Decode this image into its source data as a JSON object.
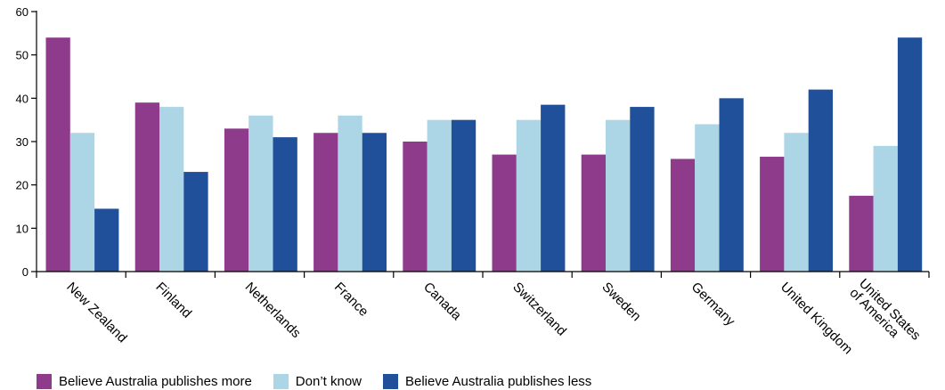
{
  "chart_data": {
    "type": "bar",
    "categories": [
      "New Zealand",
      "Finland",
      "Netherlands",
      "France",
      "Canada",
      "Switzerland",
      "Sweden",
      "Germany",
      "United Kingdom",
      "United States\nof America"
    ],
    "series": [
      {
        "name": "Believe Australia publishes more",
        "color": "#8e3b8c",
        "values": [
          54,
          39,
          33,
          32,
          30,
          27,
          27,
          26,
          26.5,
          17.5
        ]
      },
      {
        "name": "Don’t know",
        "color": "#acd5e6",
        "values": [
          32,
          38,
          36,
          36,
          35,
          35,
          35,
          34,
          32,
          29
        ]
      },
      {
        "name": "Believe Australia publishes less",
        "color": "#20509a",
        "values": [
          14.5,
          23,
          31,
          32,
          35,
          38.5,
          38,
          40,
          42,
          54
        ]
      }
    ],
    "ylim": [
      0,
      60
    ],
    "yticks": [
      0,
      10,
      20,
      30,
      40,
      50,
      60
    ],
    "grid": false,
    "legend_position": "bottom-left",
    "title": "",
    "xlabel": "",
    "ylabel": ""
  }
}
